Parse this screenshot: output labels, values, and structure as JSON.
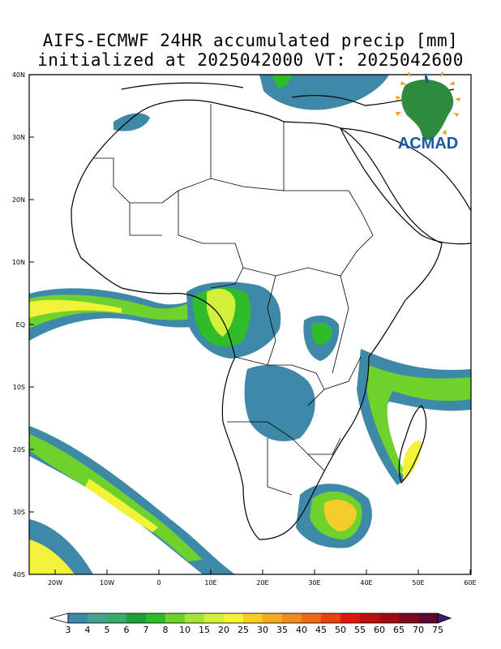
{
  "title": {
    "line1": "AIFS-ECMWF 24HR accumulated precip [mm]",
    "line2": "initialized at 2025042000 VT: 2025042600"
  },
  "logo": {
    "text": "ACMAD",
    "icon": "africa-map-logo-icon",
    "color": "#1a5aa6"
  },
  "axes": {
    "lat_ticks": [
      "40N",
      "30N",
      "20N",
      "10N",
      "EQ",
      "10S",
      "20S",
      "30S",
      "40S"
    ],
    "lon_ticks": [
      "20W",
      "10W",
      "0",
      "10E",
      "20E",
      "30E",
      "40E",
      "50E",
      "60E"
    ]
  },
  "colorbar": {
    "labels": [
      "3",
      "4",
      "5",
      "6",
      "7",
      "8",
      "10",
      "15",
      "20",
      "25",
      "30",
      "35",
      "40",
      "45",
      "50",
      "55",
      "60",
      "65",
      "70",
      "75"
    ],
    "colors": [
      "#3e89a8",
      "#4aa18f",
      "#38aa6e",
      "#1f9e3a",
      "#2fbb2a",
      "#6fd12b",
      "#a6e23a",
      "#d2ef3c",
      "#f2f23a",
      "#f5cd2a",
      "#f4ab24",
      "#ef8a1e",
      "#ec6a18",
      "#e84212",
      "#d91a0e",
      "#bd0f0f",
      "#9e0d14",
      "#7c0a1c",
      "#5e0830"
    ],
    "low_color": "#ffffff",
    "high_color": "#3d1a78"
  }
}
